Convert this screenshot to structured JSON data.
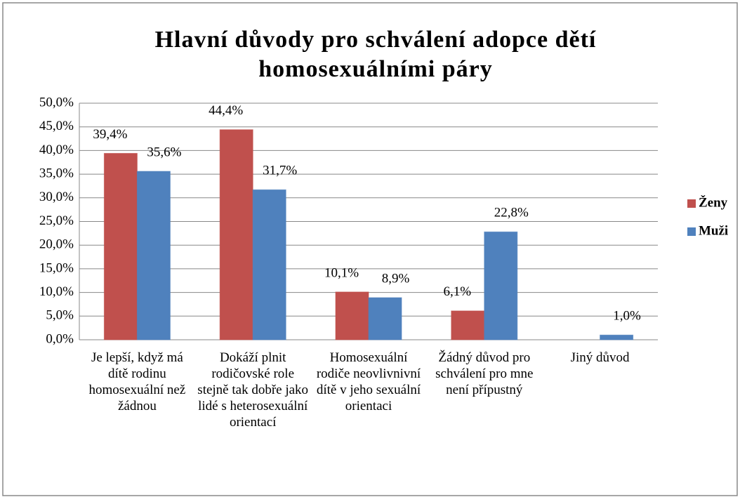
{
  "chart_data": {
    "type": "bar",
    "title": "Hlavní důvody pro schválení adopce dětí homosexuálními páry",
    "categories": [
      "Je lepší, když má dítě rodinu homosexuální než žádnou",
      "Dokáží plnit rodičovské role stejně tak dobře jako lidé s heterosexuální orientací",
      "Homosexuální rodiče neovlivnivní dítě v jeho sexuální orientaci",
      "Žádný důvod pro schválení pro mne není přípustný",
      "Jiný důvod"
    ],
    "series": [
      {
        "name": "Ženy",
        "color": "#c0504d",
        "values": [
          39.4,
          44.4,
          10.1,
          6.1,
          null
        ],
        "value_labels": [
          "39,4%",
          "44,4%",
          "10,1%",
          "6,1%",
          null
        ]
      },
      {
        "name": "Muži",
        "color": "#4f81bd",
        "values": [
          35.6,
          31.7,
          8.9,
          22.8,
          1.0
        ],
        "value_labels": [
          "35,6%",
          "31,7%",
          "8,9%",
          "22,8%",
          "1,0%"
        ]
      }
    ],
    "ylim": [
      0,
      50
    ],
    "yticks": [
      {
        "value": 0,
        "label": "0,0%"
      },
      {
        "value": 5,
        "label": "5,0%"
      },
      {
        "value": 10,
        "label": "10,0%"
      },
      {
        "value": 15,
        "label": "15,0%"
      },
      {
        "value": 20,
        "label": "20,0%"
      },
      {
        "value": 25,
        "label": "25,0%"
      },
      {
        "value": 30,
        "label": "30,0%"
      },
      {
        "value": 35,
        "label": "35,0%"
      },
      {
        "value": 40,
        "label": "40,0%"
      },
      {
        "value": 45,
        "label": "45,0%"
      },
      {
        "value": 50,
        "label": "50,0%"
      }
    ],
    "grid": true,
    "legend": "right"
  }
}
